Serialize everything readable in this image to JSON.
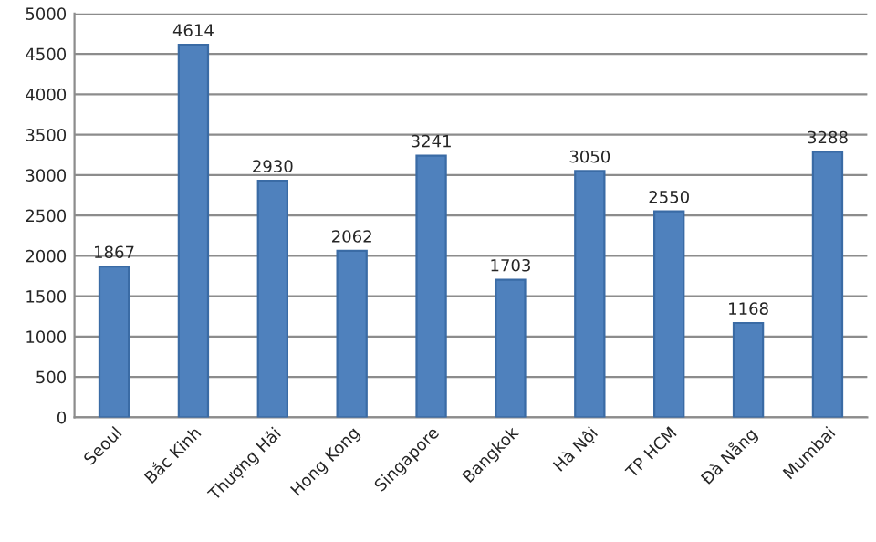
{
  "chart_data": {
    "type": "bar",
    "categories": [
      "Seoul",
      "Bắc Kinh",
      "Thượng Hải",
      "Hong Kong",
      "Singapore",
      "Bangkok",
      "Hà Nội",
      "TP HCM",
      "Đà Nẵng",
      "Mumbai"
    ],
    "values": [
      1867,
      4614,
      2930,
      2062,
      3241,
      1703,
      3050,
      2550,
      1168,
      3288
    ],
    "color": "#4f81bd",
    "ylim": [
      0,
      5000
    ],
    "yticks": [
      0,
      500,
      1000,
      1500,
      2000,
      2500,
      3000,
      3500,
      4000,
      4500,
      5000
    ],
    "grid": "y",
    "data_labels": true
  }
}
